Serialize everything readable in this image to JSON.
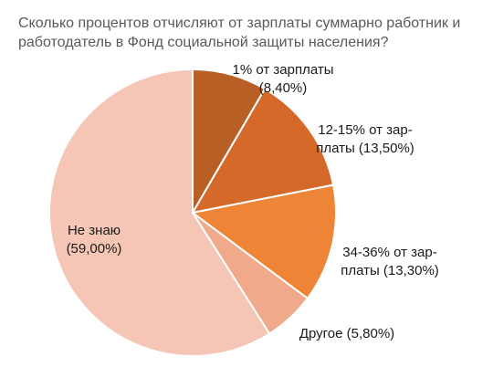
{
  "chart_data": {
    "type": "pie",
    "title_lines": [
      "Сколько процентов отчисляют от зарплаты суммарно работник и",
      "работодатель в Фонд социальной защиты населения?"
    ],
    "slices": [
      {
        "label_lines": [
          "1% от зарплаты",
          "(8,40%)"
        ],
        "value": 8.4,
        "color": "#b85f25"
      },
      {
        "label_lines": [
          "12-15% от зар-",
          "платы (13,50%)"
        ],
        "value": 13.5,
        "color": "#d4692a"
      },
      {
        "label_lines": [
          "34-36% от зар-",
          "платы (13,30%)"
        ],
        "value": 13.3,
        "color": "#ee8536"
      },
      {
        "label_lines": [
          "Другое  (5,80%)"
        ],
        "value": 5.8,
        "color": "#f0a98a"
      },
      {
        "label_lines": [
          "Не знаю",
          "(59,00%)"
        ],
        "value": 59.0,
        "color": "#f5c5b6"
      }
    ],
    "start_angle": "12 o'clock",
    "direction": "clockwise",
    "legend": "none",
    "label_placement": "on slices"
  }
}
